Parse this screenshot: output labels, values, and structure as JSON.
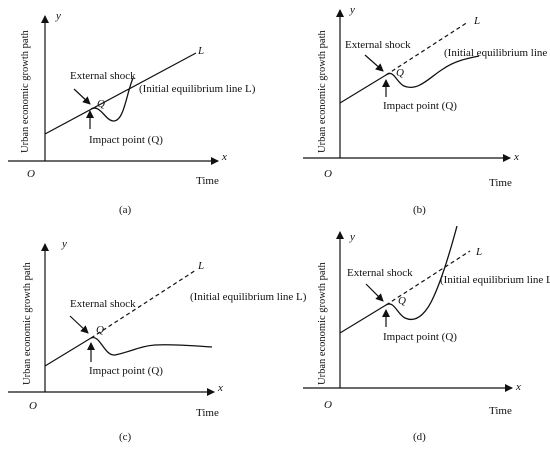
{
  "panels": [
    {
      "caption": "(a)",
      "y_axis_letter": "y",
      "x_axis_letter": "x",
      "origin_label": "O",
      "ylabel": "Urban economic growth path",
      "xlabel": "Time",
      "shock_label": "External shock",
      "point_letter": "Q",
      "impact_label": "Impact point (Q)",
      "equilibrium_label": "(Initial equilibrium line L)",
      "line_letter": "L"
    },
    {
      "caption": "(b)",
      "y_axis_letter": "y",
      "x_axis_letter": "x",
      "origin_label": "O",
      "ylabel": "Urban economic growth path",
      "xlabel": "Time",
      "shock_label": "External shock",
      "point_letter": "Q",
      "impact_label": "Impact point (Q)",
      "equilibrium_label": "(Initial equilibrium line L)",
      "line_letter": "L"
    },
    {
      "caption": "(c)",
      "y_axis_letter": "y",
      "x_axis_letter": "x",
      "origin_label": "O",
      "ylabel": "Urban economic growth path",
      "xlabel": "Time",
      "shock_label": "External shock",
      "point_letter": "Q",
      "impact_label": "Impact point (Q)",
      "equilibrium_label": "(Initial equilibrium line L)",
      "line_letter": "L"
    },
    {
      "caption": "(d)",
      "y_axis_letter": "y",
      "x_axis_letter": "x",
      "origin_label": "O",
      "ylabel": "Urban economic growth path",
      "xlabel": "Time",
      "shock_label": "External shock",
      "point_letter": "Q",
      "impact_label": "Impact point (Q)",
      "equilibrium_label": "(Initial equilibrium line L)",
      "line_letter": "L"
    }
  ]
}
